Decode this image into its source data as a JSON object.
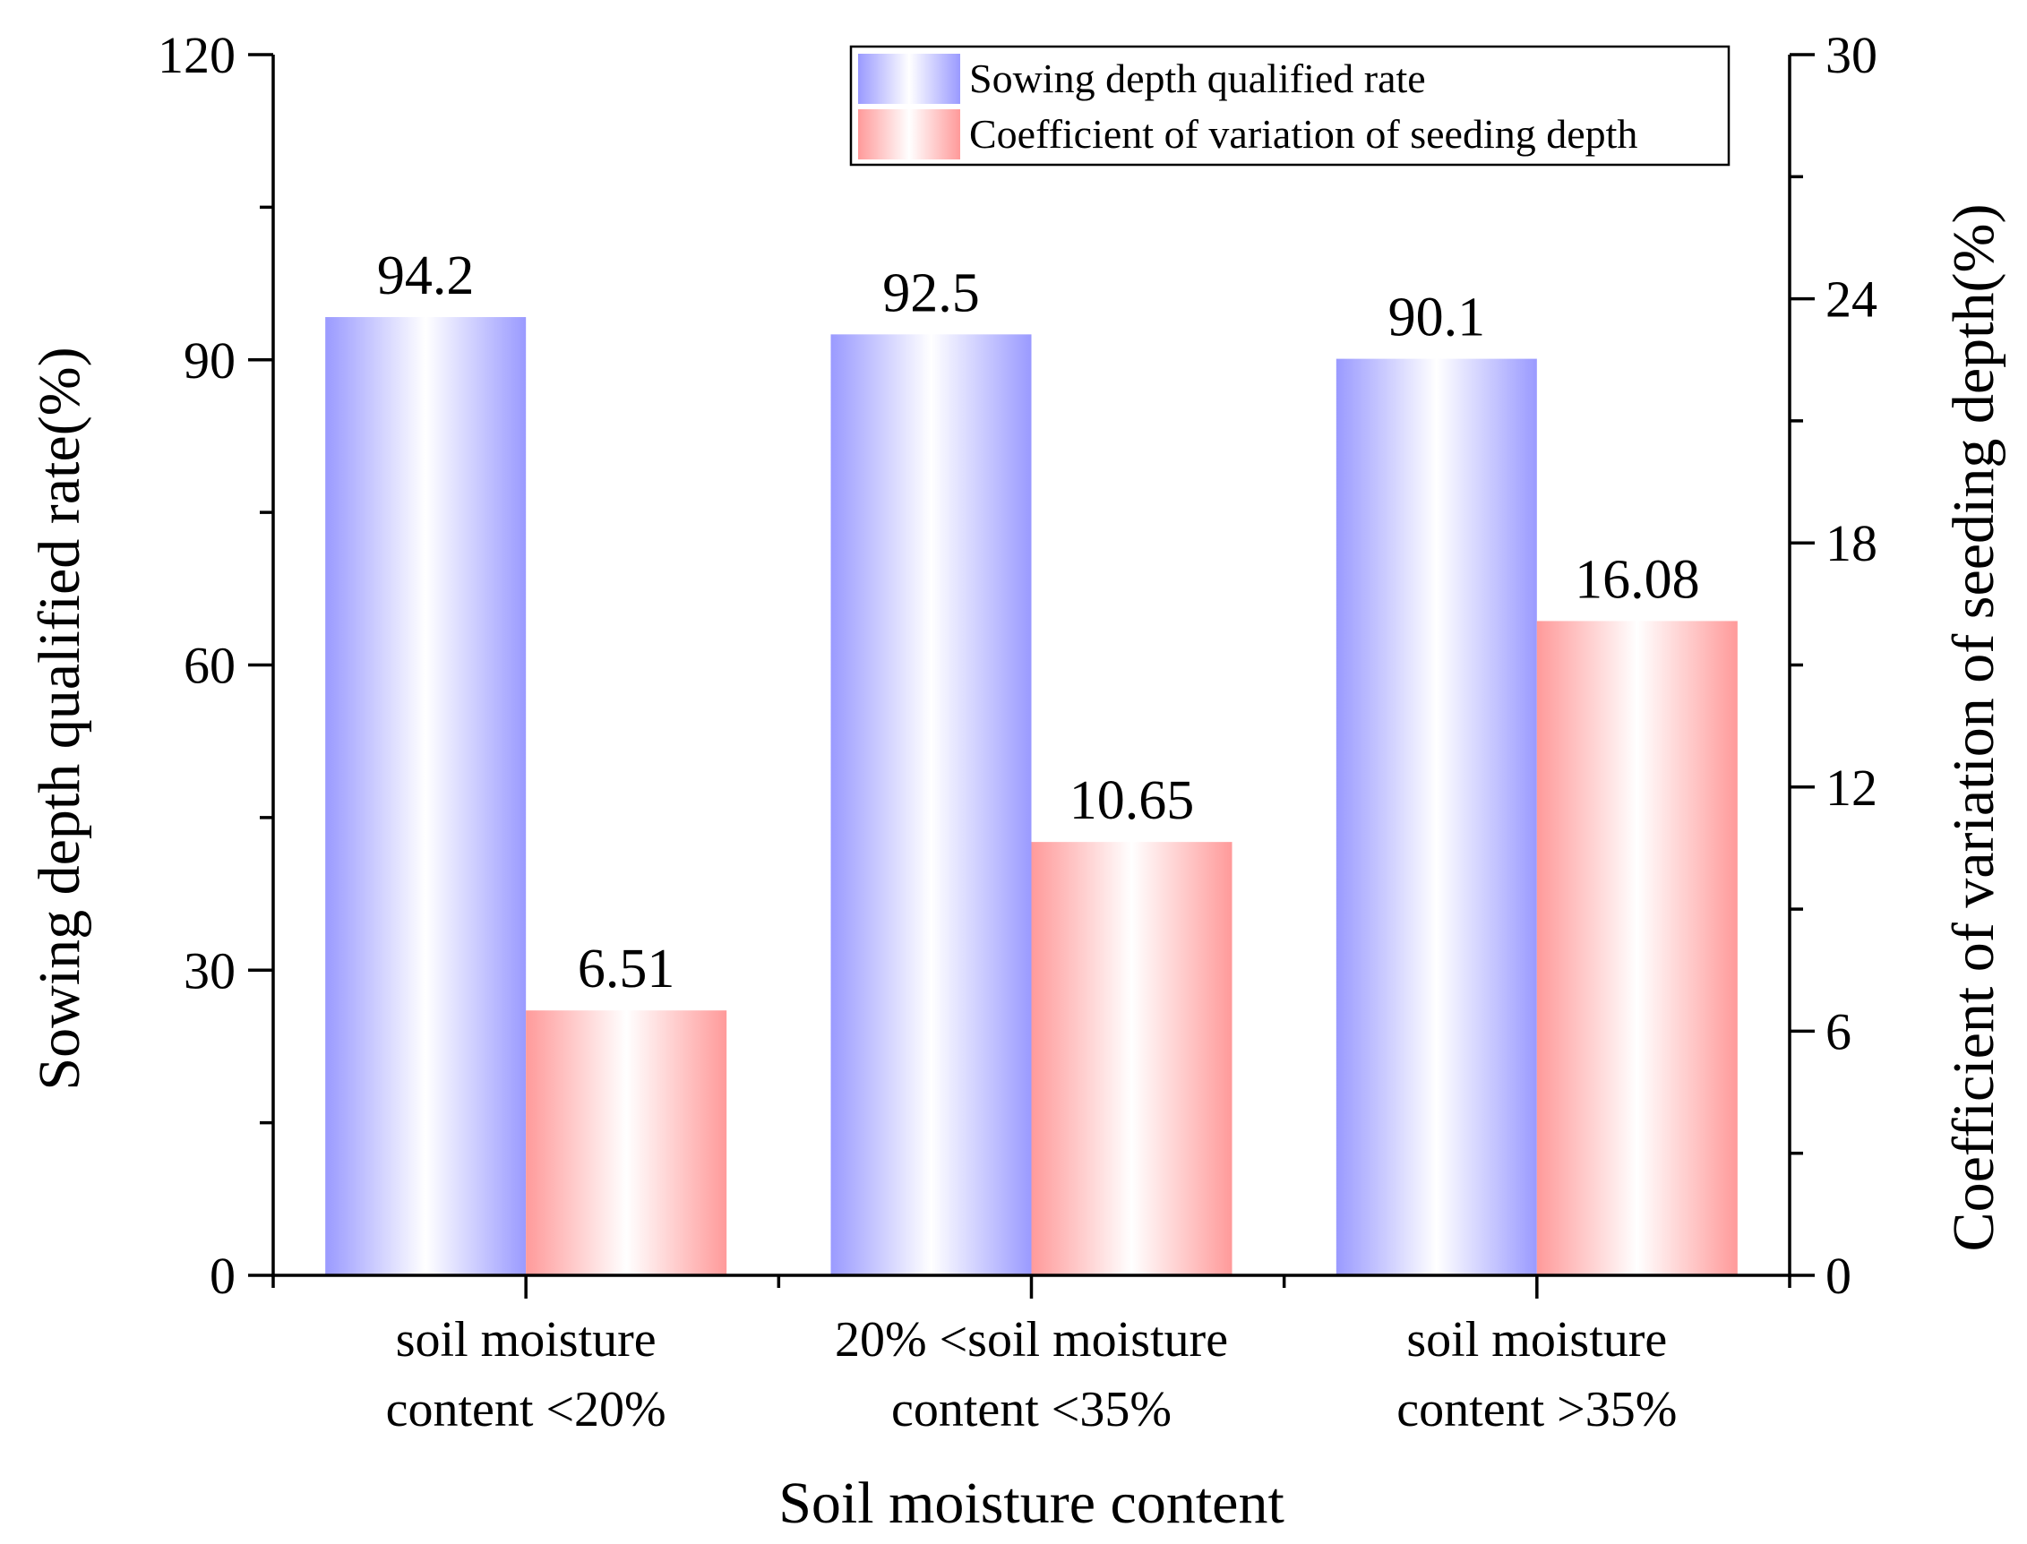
{
  "chart_data": {
    "type": "bar",
    "title": "",
    "xlabel": "Soil moisture content",
    "ylabel": "Sowing depth qualified rate(%)",
    "y2label": "Coefficient of variation of seeding depth(%)",
    "ylim": [
      0,
      120
    ],
    "y2lim": [
      0,
      30
    ],
    "yticks": [
      "0",
      "30",
      "60",
      "90",
      "120"
    ],
    "y2ticks": [
      "0",
      "6",
      "12",
      "18",
      "24",
      "30"
    ],
    "categories": [
      [
        "soil moisture",
        "content <20%"
      ],
      [
        "20% <soil moisture",
        "content <35%"
      ],
      [
        "soil moisture",
        "content >35%"
      ]
    ],
    "series": [
      {
        "name": "Sowing depth qualified rate",
        "axis": "left",
        "values": [
          94.2,
          92.5,
          90.1
        ],
        "labels": [
          "94.2",
          "92.5",
          "90.1"
        ],
        "edge_color": "#9a9aff",
        "center_color": "#ffffff"
      },
      {
        "name": "Coefficient of variation of seeding depth",
        "axis": "right",
        "values": [
          6.51,
          10.65,
          16.08
        ],
        "labels": [
          "6.51",
          "10.65",
          "16.08"
        ],
        "edge_color": "#ff9a9a",
        "center_color": "#ffffff"
      }
    ],
    "legend": "top-right",
    "grid": false
  }
}
